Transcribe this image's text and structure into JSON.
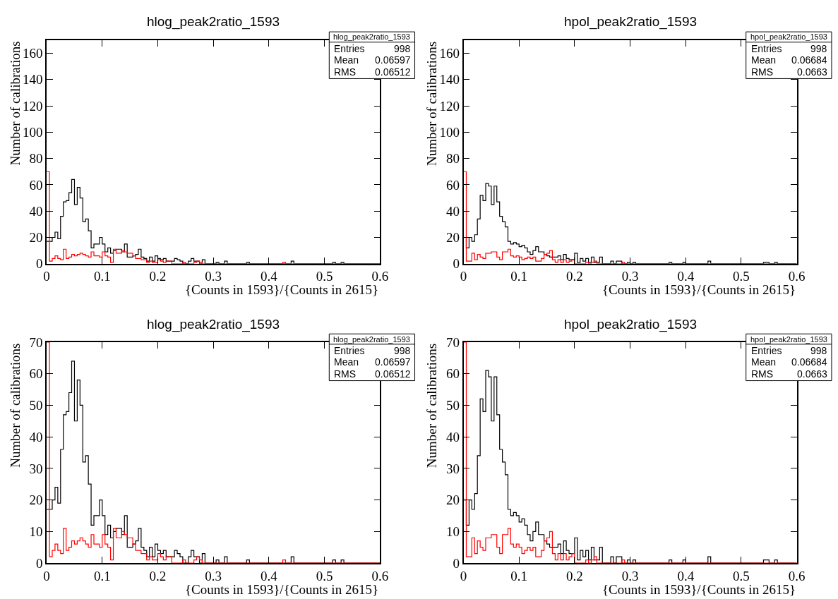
{
  "chart_data": [
    {
      "type": "histogram",
      "title": "hlog_peak2ratio_1593",
      "xlabel": "{Counts in 1593}/{Counts in 2615}",
      "ylabel": "Number of calibrations",
      "annotations": [
        "hlog_peak2ratio_1593",
        "Entries",
        "998",
        "Mean",
        "0.06597",
        "RMS",
        "0.06512"
      ],
      "xlim": [
        0,
        0.6
      ],
      "xticks": [
        0,
        0.1,
        0.2,
        0.3,
        0.4,
        0.5,
        0.6
      ],
      "ylim": [
        0,
        170
      ],
      "yticks": [
        0,
        20,
        40,
        60,
        80,
        100,
        120,
        140,
        160
      ],
      "bins": [
        0,
        0.005,
        0.01,
        0.015,
        0.02,
        0.025,
        0.03,
        0.035,
        0.04,
        0.045,
        0.05,
        0.055,
        0.06,
        0.065,
        0.07,
        0.075,
        0.08,
        0.085,
        0.09,
        0.095,
        0.1,
        0.105,
        0.11,
        0.115,
        0.12,
        0.125,
        0.13,
        0.135,
        0.14,
        0.145,
        0.15,
        0.155,
        0.16,
        0.165,
        0.17,
        0.175,
        0.18,
        0.185,
        0.19,
        0.195,
        0.2,
        0.205,
        0.21,
        0.215,
        0.22,
        0.225,
        0.23,
        0.235,
        0.24,
        0.245,
        0.25,
        0.255,
        0.26,
        0.265,
        0.27,
        0.275,
        0.28,
        0.285,
        0.29,
        0.295,
        0.3,
        0.305,
        0.31,
        0.315,
        0.32,
        0.325,
        0.33,
        0.335,
        0.34,
        0.345,
        0.35,
        0.355,
        0.36,
        0.365,
        0.37,
        0.375,
        0.38,
        0.385,
        0.39,
        0.395,
        0.4,
        0.405,
        0.41,
        0.415,
        0.42,
        0.425,
        0.43,
        0.435,
        0.44,
        0.445,
        0.45,
        0.455,
        0.46,
        0.465,
        0.47,
        0.475,
        0.48,
        0.485,
        0.49,
        0.495,
        0.5,
        0.505,
        0.51,
        0.515,
        0.52,
        0.525,
        0.53,
        0.535,
        0.54,
        0.545,
        0.55,
        0.555,
        0.56,
        0.565,
        0.57,
        0.575,
        0.58,
        0.585,
        0.59,
        0.595,
        0.6
      ],
      "series": [
        {
          "color": "#000000",
          "values": [
            17,
            17,
            20,
            24,
            19,
            36,
            47,
            48,
            54,
            64,
            45,
            58,
            50,
            32,
            34,
            25,
            12,
            15,
            15,
            20,
            15,
            9,
            12,
            8,
            10,
            11,
            11,
            9,
            15,
            5,
            5,
            6,
            7,
            11,
            5,
            4,
            2,
            5,
            2,
            6,
            4,
            3,
            4,
            2,
            2,
            2,
            4,
            3,
            2,
            0,
            0,
            2,
            4,
            2,
            2,
            0,
            3,
            0,
            0,
            0,
            0,
            1,
            0,
            0,
            2,
            0,
            0,
            0,
            0,
            0,
            0,
            0,
            1,
            0,
            0,
            0,
            0,
            0,
            0,
            0,
            0,
            0,
            0,
            0,
            0,
            0,
            0,
            0,
            2,
            0,
            0,
            0,
            0,
            0,
            0,
            0,
            0,
            0,
            0,
            0,
            0,
            0,
            0,
            1,
            0,
            0,
            1,
            0,
            0,
            0,
            0,
            0,
            0,
            0,
            0,
            0,
            0,
            0,
            0,
            0
          ]
        },
        {
          "color": "#ff0000",
          "values": [
            70,
            2,
            4,
            6,
            4,
            3,
            11,
            4,
            5,
            7,
            6,
            7,
            8,
            7,
            6,
            5,
            9,
            6,
            6,
            5,
            9,
            6,
            5,
            1,
            11,
            8,
            8,
            10,
            9,
            8,
            8,
            6,
            4,
            4,
            3,
            3,
            1,
            2,
            1,
            1,
            3,
            2,
            1,
            2,
            2,
            0,
            0,
            0,
            0,
            1,
            0,
            0,
            0,
            1,
            2,
            1,
            0,
            0,
            0,
            0,
            0,
            0,
            0,
            0,
            0,
            0,
            0,
            0,
            0,
            0,
            0,
            0,
            0,
            0,
            0,
            0,
            0,
            0,
            0,
            0,
            0,
            0,
            0,
            0,
            0,
            1,
            0,
            0,
            0,
            0,
            0,
            0,
            0,
            0,
            0,
            0,
            0,
            0,
            0,
            0,
            0,
            0,
            0,
            0,
            0,
            0,
            0,
            0,
            0,
            0,
            0,
            0,
            0,
            0,
            0,
            0,
            0,
            0,
            0,
            0
          ]
        }
      ]
    },
    {
      "type": "histogram",
      "title": "hpol_peak2ratio_1593",
      "xlabel": "{Counts in 1593}/{Counts in 2615}",
      "ylabel": "Number of calibrations",
      "annotations": [
        "hpol_peak2ratio_1593",
        "Entries",
        "998",
        "Mean",
        "0.06684",
        "RMS",
        "0.0663"
      ],
      "xlim": [
        0,
        0.6
      ],
      "xticks": [
        0,
        0.1,
        0.2,
        0.3,
        0.4,
        0.5,
        0.6
      ],
      "ylim": [
        0,
        170
      ],
      "yticks": [
        0,
        20,
        40,
        60,
        80,
        100,
        120,
        140,
        160
      ],
      "bins": [
        0,
        0.005,
        0.01,
        0.015,
        0.02,
        0.025,
        0.03,
        0.035,
        0.04,
        0.045,
        0.05,
        0.055,
        0.06,
        0.065,
        0.07,
        0.075,
        0.08,
        0.085,
        0.09,
        0.095,
        0.1,
        0.105,
        0.11,
        0.115,
        0.12,
        0.125,
        0.13,
        0.135,
        0.14,
        0.145,
        0.15,
        0.155,
        0.16,
        0.165,
        0.17,
        0.175,
        0.18,
        0.185,
        0.19,
        0.195,
        0.2,
        0.205,
        0.21,
        0.215,
        0.22,
        0.225,
        0.23,
        0.235,
        0.24,
        0.245,
        0.25,
        0.255,
        0.26,
        0.265,
        0.27,
        0.275,
        0.28,
        0.285,
        0.29,
        0.295,
        0.3,
        0.305,
        0.31,
        0.315,
        0.32,
        0.325,
        0.33,
        0.335,
        0.34,
        0.345,
        0.35,
        0.355,
        0.36,
        0.365,
        0.37,
        0.375,
        0.38,
        0.385,
        0.39,
        0.395,
        0.4,
        0.405,
        0.41,
        0.415,
        0.42,
        0.425,
        0.43,
        0.435,
        0.44,
        0.445,
        0.45,
        0.455,
        0.46,
        0.465,
        0.47,
        0.475,
        0.48,
        0.485,
        0.49,
        0.495,
        0.5,
        0.505,
        0.51,
        0.515,
        0.52,
        0.525,
        0.53,
        0.535,
        0.54,
        0.545,
        0.55,
        0.555,
        0.56,
        0.565,
        0.57,
        0.575,
        0.58,
        0.585,
        0.59,
        0.595,
        0.6
      ],
      "series": [
        {
          "color": "#000000",
          "values": [
            20,
            12,
            20,
            17,
            22,
            34,
            52,
            48,
            61,
            59,
            45,
            59,
            47,
            36,
            32,
            28,
            17,
            15,
            16,
            15,
            13,
            14,
            12,
            9,
            7,
            10,
            13,
            9,
            9,
            7,
            6,
            5,
            5,
            5,
            6,
            3,
            7,
            4,
            3,
            3,
            8,
            1,
            4,
            2,
            4,
            1,
            5,
            1,
            1,
            5,
            0,
            0,
            0,
            2,
            0,
            2,
            2,
            0,
            0,
            1,
            0,
            1,
            0,
            0,
            0,
            0,
            0,
            0,
            0,
            0,
            0,
            0,
            0,
            0,
            1,
            0,
            0,
            0,
            0,
            1,
            0,
            0,
            0,
            0,
            0,
            0,
            0,
            0,
            2,
            0,
            0,
            0,
            0,
            0,
            0,
            0,
            0,
            0,
            0,
            0,
            0,
            0,
            0,
            0,
            0,
            0,
            0,
            0,
            1,
            1,
            0,
            0,
            1,
            0,
            0,
            0,
            0,
            0,
            0,
            0
          ]
        },
        {
          "color": "#ff0000",
          "values": [
            70,
            2,
            2,
            8,
            3,
            7,
            5,
            4,
            8,
            8,
            9,
            9,
            5,
            3,
            9,
            9,
            11,
            6,
            5,
            6,
            5,
            3,
            4,
            5,
            4,
            5,
            2,
            2,
            4,
            7,
            8,
            10,
            3,
            1,
            3,
            1,
            3,
            1,
            2,
            3,
            0,
            0,
            0,
            0,
            1,
            0,
            1,
            2,
            0,
            0,
            0,
            0,
            0,
            0,
            0,
            0,
            0,
            1,
            0,
            0,
            0,
            0,
            0,
            0,
            0,
            0,
            0,
            0,
            0,
            0,
            0,
            0,
            0,
            0,
            0,
            0,
            0,
            0,
            0,
            0,
            0,
            0,
            0,
            0,
            0,
            0,
            0,
            0,
            0,
            0,
            0,
            0,
            0,
            0,
            0,
            0,
            0,
            0,
            0,
            0,
            0,
            0,
            0,
            0,
            0,
            0,
            0,
            0,
            0,
            0,
            0,
            0,
            0,
            0,
            0,
            0,
            0,
            0,
            0,
            0
          ]
        }
      ]
    },
    {
      "type": "histogram",
      "title": "hlog_peak2ratio_1593",
      "xlabel": "{Counts in 1593}/{Counts in 2615}",
      "ylabel": "Number of calibrations",
      "annotations": [
        "hlog_peak2ratio_1593",
        "Entries",
        "998",
        "Mean",
        "0.06597",
        "RMS",
        "0.06512"
      ],
      "xlim": [
        0,
        0.6
      ],
      "xticks": [
        0,
        0.1,
        0.2,
        0.3,
        0.4,
        0.5,
        0.6
      ],
      "ylim": [
        0,
        70
      ],
      "yticks": [
        0,
        10,
        20,
        30,
        40,
        50,
        60,
        70
      ],
      "bins": [
        0,
        0.005,
        0.01,
        0.015,
        0.02,
        0.025,
        0.03,
        0.035,
        0.04,
        0.045,
        0.05,
        0.055,
        0.06,
        0.065,
        0.07,
        0.075,
        0.08,
        0.085,
        0.09,
        0.095,
        0.1,
        0.105,
        0.11,
        0.115,
        0.12,
        0.125,
        0.13,
        0.135,
        0.14,
        0.145,
        0.15,
        0.155,
        0.16,
        0.165,
        0.17,
        0.175,
        0.18,
        0.185,
        0.19,
        0.195,
        0.2,
        0.205,
        0.21,
        0.215,
        0.22,
        0.225,
        0.23,
        0.235,
        0.24,
        0.245,
        0.25,
        0.255,
        0.26,
        0.265,
        0.27,
        0.275,
        0.28,
        0.285,
        0.29,
        0.295,
        0.3,
        0.305,
        0.31,
        0.315,
        0.32,
        0.325,
        0.33,
        0.335,
        0.34,
        0.345,
        0.35,
        0.355,
        0.36,
        0.365,
        0.37,
        0.375,
        0.38,
        0.385,
        0.39,
        0.395,
        0.4,
        0.405,
        0.41,
        0.415,
        0.42,
        0.425,
        0.43,
        0.435,
        0.44,
        0.445,
        0.45,
        0.455,
        0.46,
        0.465,
        0.47,
        0.475,
        0.48,
        0.485,
        0.49,
        0.495,
        0.5,
        0.505,
        0.51,
        0.515,
        0.52,
        0.525,
        0.53,
        0.535,
        0.54,
        0.545,
        0.55,
        0.555,
        0.56,
        0.565,
        0.57,
        0.575,
        0.58,
        0.585,
        0.59,
        0.595,
        0.6
      ],
      "series": [
        {
          "color": "#000000",
          "values": [
            17,
            17,
            20,
            24,
            19,
            36,
            47,
            48,
            54,
            64,
            45,
            58,
            50,
            32,
            34,
            25,
            12,
            15,
            15,
            20,
            15,
            9,
            12,
            8,
            10,
            11,
            11,
            9,
            15,
            5,
            5,
            6,
            7,
            11,
            5,
            4,
            2,
            5,
            2,
            6,
            4,
            3,
            4,
            2,
            2,
            2,
            4,
            3,
            2,
            0,
            0,
            2,
            4,
            2,
            2,
            0,
            3,
            0,
            0,
            0,
            0,
            1,
            0,
            0,
            2,
            0,
            0,
            0,
            0,
            0,
            0,
            0,
            1,
            0,
            0,
            0,
            0,
            0,
            0,
            0,
            0,
            0,
            0,
            0,
            0,
            0,
            0,
            0,
            2,
            0,
            0,
            0,
            0,
            0,
            0,
            0,
            0,
            0,
            0,
            0,
            0,
            0,
            0,
            1,
            0,
            0,
            1,
            0,
            0,
            0,
            0,
            0,
            0,
            0,
            0,
            0,
            0,
            0,
            0,
            0
          ]
        },
        {
          "color": "#ff0000",
          "values": [
            70,
            2,
            4,
            6,
            4,
            3,
            11,
            4,
            5,
            7,
            6,
            7,
            8,
            7,
            6,
            5,
            9,
            6,
            6,
            5,
            9,
            6,
            5,
            1,
            11,
            8,
            8,
            10,
            9,
            8,
            8,
            6,
            4,
            4,
            3,
            3,
            1,
            2,
            1,
            1,
            3,
            2,
            1,
            2,
            2,
            0,
            0,
            0,
            0,
            1,
            0,
            0,
            0,
            1,
            2,
            1,
            0,
            0,
            0,
            0,
            0,
            0,
            0,
            0,
            0,
            0,
            0,
            0,
            0,
            0,
            0,
            0,
            0,
            0,
            0,
            0,
            0,
            0,
            0,
            0,
            0,
            0,
            0,
            0,
            0,
            1,
            0,
            0,
            0,
            0,
            0,
            0,
            0,
            0,
            0,
            0,
            0,
            0,
            0,
            0,
            0,
            0,
            0,
            0,
            0,
            0,
            0,
            0,
            0,
            0,
            0,
            0,
            0,
            0,
            0,
            0,
            0,
            0,
            0,
            0
          ]
        }
      ]
    },
    {
      "type": "histogram",
      "title": "hpol_peak2ratio_1593",
      "xlabel": "{Counts in 1593}/{Counts in 2615}",
      "ylabel": "Number of calibrations",
      "annotations": [
        "hpol_peak2ratio_1593",
        "Entries",
        "998",
        "Mean",
        "0.06684",
        "RMS",
        "0.0663"
      ],
      "xlim": [
        0,
        0.6
      ],
      "xticks": [
        0,
        0.1,
        0.2,
        0.3,
        0.4,
        0.5,
        0.6
      ],
      "ylim": [
        0,
        70
      ],
      "yticks": [
        0,
        10,
        20,
        30,
        40,
        50,
        60,
        70
      ],
      "bins": [
        0,
        0.005,
        0.01,
        0.015,
        0.02,
        0.025,
        0.03,
        0.035,
        0.04,
        0.045,
        0.05,
        0.055,
        0.06,
        0.065,
        0.07,
        0.075,
        0.08,
        0.085,
        0.09,
        0.095,
        0.1,
        0.105,
        0.11,
        0.115,
        0.12,
        0.125,
        0.13,
        0.135,
        0.14,
        0.145,
        0.15,
        0.155,
        0.16,
        0.165,
        0.17,
        0.175,
        0.18,
        0.185,
        0.19,
        0.195,
        0.2,
        0.205,
        0.21,
        0.215,
        0.22,
        0.225,
        0.23,
        0.235,
        0.24,
        0.245,
        0.25,
        0.255,
        0.26,
        0.265,
        0.27,
        0.275,
        0.28,
        0.285,
        0.29,
        0.295,
        0.3,
        0.305,
        0.31,
        0.315,
        0.32,
        0.325,
        0.33,
        0.335,
        0.34,
        0.345,
        0.35,
        0.355,
        0.36,
        0.365,
        0.37,
        0.375,
        0.38,
        0.385,
        0.39,
        0.395,
        0.4,
        0.405,
        0.41,
        0.415,
        0.42,
        0.425,
        0.43,
        0.435,
        0.44,
        0.445,
        0.45,
        0.455,
        0.46,
        0.465,
        0.47,
        0.475,
        0.48,
        0.485,
        0.49,
        0.495,
        0.5,
        0.505,
        0.51,
        0.515,
        0.52,
        0.525,
        0.53,
        0.535,
        0.54,
        0.545,
        0.55,
        0.555,
        0.56,
        0.565,
        0.57,
        0.575,
        0.58,
        0.585,
        0.59,
        0.595,
        0.6
      ],
      "series": [
        {
          "color": "#000000",
          "values": [
            20,
            12,
            20,
            17,
            22,
            34,
            52,
            48,
            61,
            59,
            45,
            59,
            47,
            36,
            32,
            28,
            17,
            15,
            16,
            15,
            13,
            14,
            12,
            9,
            7,
            10,
            13,
            9,
            9,
            7,
            6,
            5,
            5,
            5,
            6,
            3,
            7,
            4,
            3,
            3,
            8,
            1,
            4,
            2,
            4,
            1,
            5,
            1,
            1,
            5,
            0,
            0,
            0,
            2,
            0,
            2,
            2,
            0,
            0,
            1,
            0,
            1,
            0,
            0,
            0,
            0,
            0,
            0,
            0,
            0,
            0,
            0,
            0,
            0,
            1,
            0,
            0,
            0,
            0,
            1,
            0,
            0,
            0,
            0,
            0,
            0,
            0,
            0,
            2,
            0,
            0,
            0,
            0,
            0,
            0,
            0,
            0,
            0,
            0,
            0,
            0,
            0,
            0,
            0,
            0,
            0,
            0,
            0,
            1,
            1,
            0,
            0,
            1,
            0,
            0,
            0,
            0,
            0,
            0,
            0
          ]
        },
        {
          "color": "#ff0000",
          "values": [
            70,
            2,
            2,
            8,
            3,
            7,
            5,
            4,
            8,
            8,
            9,
            9,
            5,
            3,
            9,
            9,
            11,
            6,
            5,
            6,
            5,
            3,
            4,
            5,
            4,
            5,
            2,
            2,
            4,
            7,
            8,
            10,
            3,
            1,
            3,
            1,
            3,
            1,
            2,
            3,
            0,
            0,
            0,
            0,
            1,
            0,
            1,
            2,
            0,
            0,
            0,
            0,
            0,
            0,
            0,
            0,
            0,
            1,
            0,
            0,
            0,
            0,
            0,
            0,
            0,
            0,
            0,
            0,
            0,
            0,
            0,
            0,
            0,
            0,
            0,
            0,
            0,
            0,
            0,
            0,
            0,
            0,
            0,
            0,
            0,
            0,
            0,
            0,
            0,
            0,
            0,
            0,
            0,
            0,
            0,
            0,
            0,
            0,
            0,
            0,
            0,
            0,
            0,
            0,
            0,
            0,
            0,
            0,
            0,
            0,
            0,
            0,
            0,
            0,
            0,
            0,
            0,
            0,
            0,
            0
          ]
        }
      ]
    }
  ]
}
